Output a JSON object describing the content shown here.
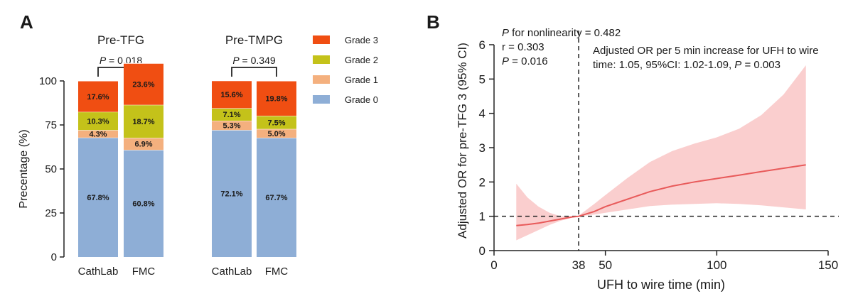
{
  "chart_data": [
    {
      "panel_label": "A",
      "type": "bar",
      "stacked": true,
      "ylabel": "Precentage (%)",
      "ylim": [
        0,
        100
      ],
      "yticks": [
        "0",
        "25",
        "50",
        "75",
        "100"
      ],
      "groups": [
        {
          "title": "Pre-TFG",
          "p_label": "P",
          "p_value": " = 0.018",
          "bars": [
            {
              "category": "CathLab",
              "values": {
                "grade0": 67.8,
                "grade1": 4.3,
                "grade2": 10.3,
                "grade3": 17.6
              },
              "labels": {
                "grade0": "67.8%",
                "grade1": "4.3%",
                "grade2": "10.3%",
                "grade3": "17.6%"
              }
            },
            {
              "category": "FMC",
              "values": {
                "grade0": 60.8,
                "grade1": 6.9,
                "grade2": 18.7,
                "grade3": 23.6
              },
              "labels": {
                "grade0": "60.8%",
                "grade1": "6.9%",
                "grade2": "18.7%",
                "grade3": "23.6%"
              }
            }
          ]
        },
        {
          "title": "Pre-TMPG",
          "p_label": "P",
          "p_value": " = 0.349",
          "bars": [
            {
              "category": "CathLab",
              "values": {
                "grade0": 72.1,
                "grade1": 5.3,
                "grade2": 7.1,
                "grade3": 15.6
              },
              "labels": {
                "grade0": "72.1%",
                "grade1": "5.3%",
                "grade2": "7.1%",
                "grade3": "15.6%"
              }
            },
            {
              "category": "FMC",
              "values": {
                "grade0": 67.7,
                "grade1": 5.0,
                "grade2": 7.5,
                "grade3": 19.8
              },
              "labels": {
                "grade0": "67.7%",
                "grade1": "5.0%",
                "grade2": "7.5%",
                "grade3": "19.8%"
              }
            }
          ]
        }
      ],
      "legend": [
        {
          "key": "grade3",
          "name": "Grade 3",
          "color": "#f04e12"
        },
        {
          "key": "grade2",
          "name": "Grade 2",
          "color": "#c4c21a"
        },
        {
          "key": "grade1",
          "name": "Grade 1",
          "color": "#f4b07e"
        },
        {
          "key": "grade0",
          "name": "Grade 0",
          "color": "#8eaed6"
        }
      ],
      "legend_position": "right"
    },
    {
      "panel_label": "B",
      "type": "line",
      "xlabel": "UFH to wire time (min)",
      "ylabel": "Adjusted OR for pre-TFG 3 (95% CI)",
      "xlim": [
        0,
        150
      ],
      "ylim": [
        0,
        6
      ],
      "xticks": [
        0,
        50,
        100,
        150
      ],
      "yticks": [
        0,
        1,
        2,
        3,
        4,
        5,
        6
      ],
      "extra_xtick": 38,
      "ref_vline_x": 38,
      "ref_hline_y": 1,
      "line_color": "#e85a5a",
      "ci_color": "#f9c9c9",
      "curve": {
        "x": [
          10,
          15,
          20,
          25,
          30,
          35,
          38,
          45,
          50,
          60,
          70,
          80,
          90,
          100,
          110,
          120,
          130,
          140
        ],
        "y": [
          0.73,
          0.76,
          0.8,
          0.86,
          0.92,
          0.98,
          1.0,
          1.14,
          1.28,
          1.5,
          1.72,
          1.88,
          2.0,
          2.1,
          2.2,
          2.3,
          2.4,
          2.5
        ],
        "lower": [
          0.3,
          0.45,
          0.6,
          0.75,
          0.87,
          0.96,
          1.0,
          1.05,
          1.1,
          1.2,
          1.3,
          1.34,
          1.36,
          1.38,
          1.36,
          1.32,
          1.26,
          1.2
        ],
        "upper": [
          1.95,
          1.55,
          1.28,
          1.1,
          1.0,
          1.0,
          1.02,
          1.36,
          1.62,
          2.12,
          2.58,
          2.9,
          3.12,
          3.3,
          3.55,
          3.95,
          4.55,
          5.4
        ]
      },
      "annotations": {
        "nonlinearity_p_label": "P",
        "nonlinearity": " for nonlinearity = 0.482",
        "r": "r = 0.303",
        "p_label": "P",
        "p": " = 0.016",
        "or_line1": "Adjusted OR per 5 min increase for UFH to wire",
        "or_line2_a": "time: 1.05, 95%CI: 1.02-1.09, ",
        "or_line2_p": "P",
        "or_line2_b": " = 0.003"
      }
    }
  ]
}
